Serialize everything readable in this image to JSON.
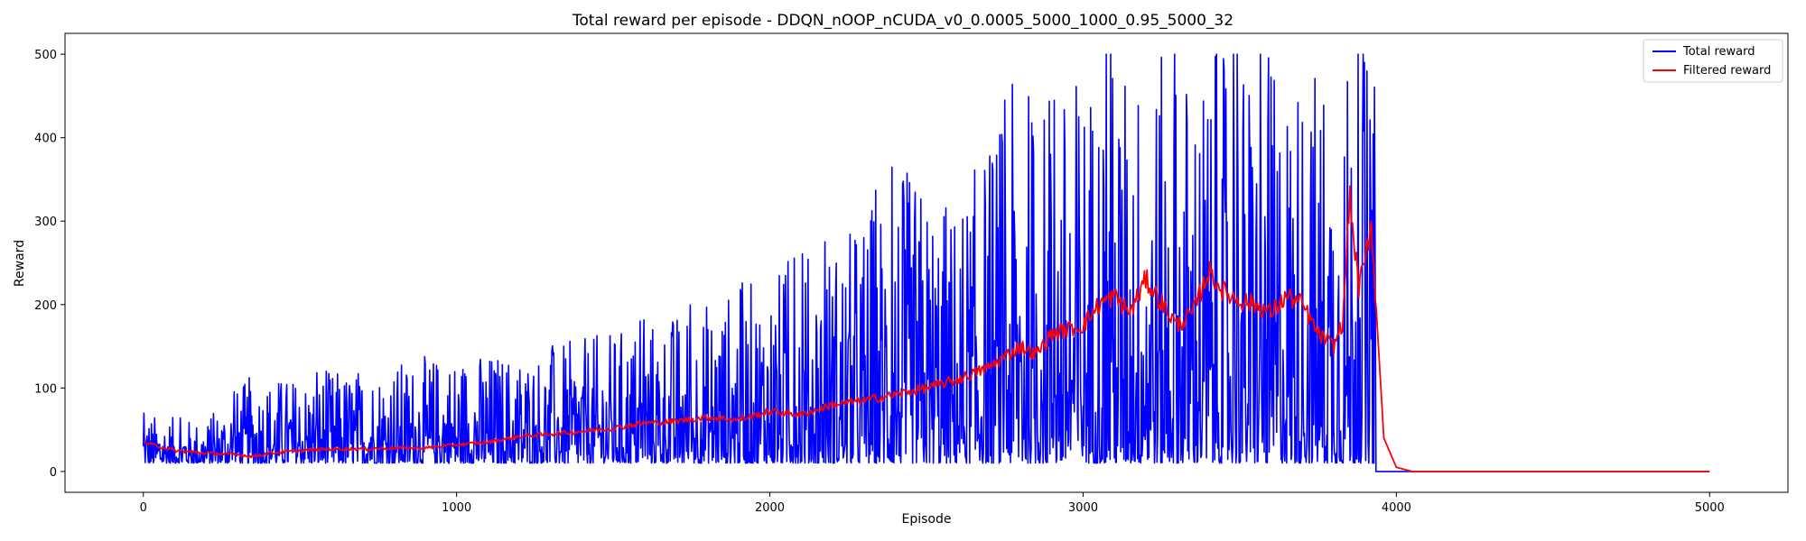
{
  "chart_data": {
    "type": "line",
    "title": "Total reward per episode - DDQN_nOOP_nCUDA_v0_0.0005_5000_1000_0.95_5000_32",
    "xlabel": "Episode",
    "ylabel": "Reward",
    "xlim": [
      -250,
      5250
    ],
    "ylim": [
      -25,
      525
    ],
    "xticks": [
      0,
      1000,
      2000,
      3000,
      4000,
      5000
    ],
    "yticks": [
      0,
      100,
      200,
      300,
      400,
      500
    ],
    "legend_position": "top-right",
    "grid": false,
    "series": [
      {
        "name": "Total reward",
        "color": "#0000ff",
        "description": "Noisy per-episode reward; values below trace the approximate local maxima envelope",
        "envelope_max": {
          "x": [
            0,
            200,
            340,
            500,
            750,
            1000,
            1150,
            1300,
            1500,
            1750,
            2000,
            2250,
            2400,
            2600,
            2800,
            2900,
            3000,
            3100,
            3200,
            3400,
            3500,
            3600,
            3700,
            3800,
            3850,
            3900,
            3930
          ],
          "y": [
            70,
            60,
            115,
            115,
            130,
            145,
            145,
            150,
            170,
            200,
            240,
            290,
            370,
            325,
            485,
            440,
            500,
            500,
            500,
            500,
            500,
            500,
            500,
            500,
            500,
            500,
            500
          ]
        },
        "envelope_min": {
          "x": [
            0,
            1000,
            2000,
            3000,
            3930
          ],
          "y": [
            10,
            10,
            10,
            10,
            10
          ]
        },
        "tail": {
          "x": [
            3935,
            5000
          ],
          "y": [
            0,
            0
          ]
        }
      },
      {
        "name": "Filtered reward",
        "color": "#ff0000",
        "x": [
          0,
          100,
          200,
          300,
          350,
          400,
          500,
          600,
          700,
          800,
          900,
          1000,
          1100,
          1200,
          1300,
          1400,
          1500,
          1600,
          1700,
          1800,
          1900,
          2000,
          2100,
          2200,
          2300,
          2400,
          2500,
          2600,
          2700,
          2800,
          2850,
          2900,
          3000,
          3050,
          3100,
          3150,
          3200,
          3300,
          3350,
          3400,
          3450,
          3500,
          3550,
          3600,
          3650,
          3700,
          3750,
          3800,
          3830,
          3850,
          3880,
          3900,
          3920,
          3935,
          3960,
          4000,
          4050,
          5000
        ],
        "y": [
          35,
          25,
          22,
          20,
          18,
          22,
          25,
          27,
          27,
          28,
          28,
          32,
          35,
          42,
          45,
          48,
          52,
          58,
          60,
          65,
          62,
          72,
          68,
          80,
          85,
          92,
          100,
          110,
          125,
          150,
          140,
          165,
          175,
          200,
          210,
          190,
          230,
          175,
          190,
          240,
          215,
          205,
          200,
          190,
          210,
          200,
          165,
          150,
          180,
          330,
          220,
          250,
          300,
          200,
          40,
          5,
          0,
          0
        ]
      }
    ]
  }
}
